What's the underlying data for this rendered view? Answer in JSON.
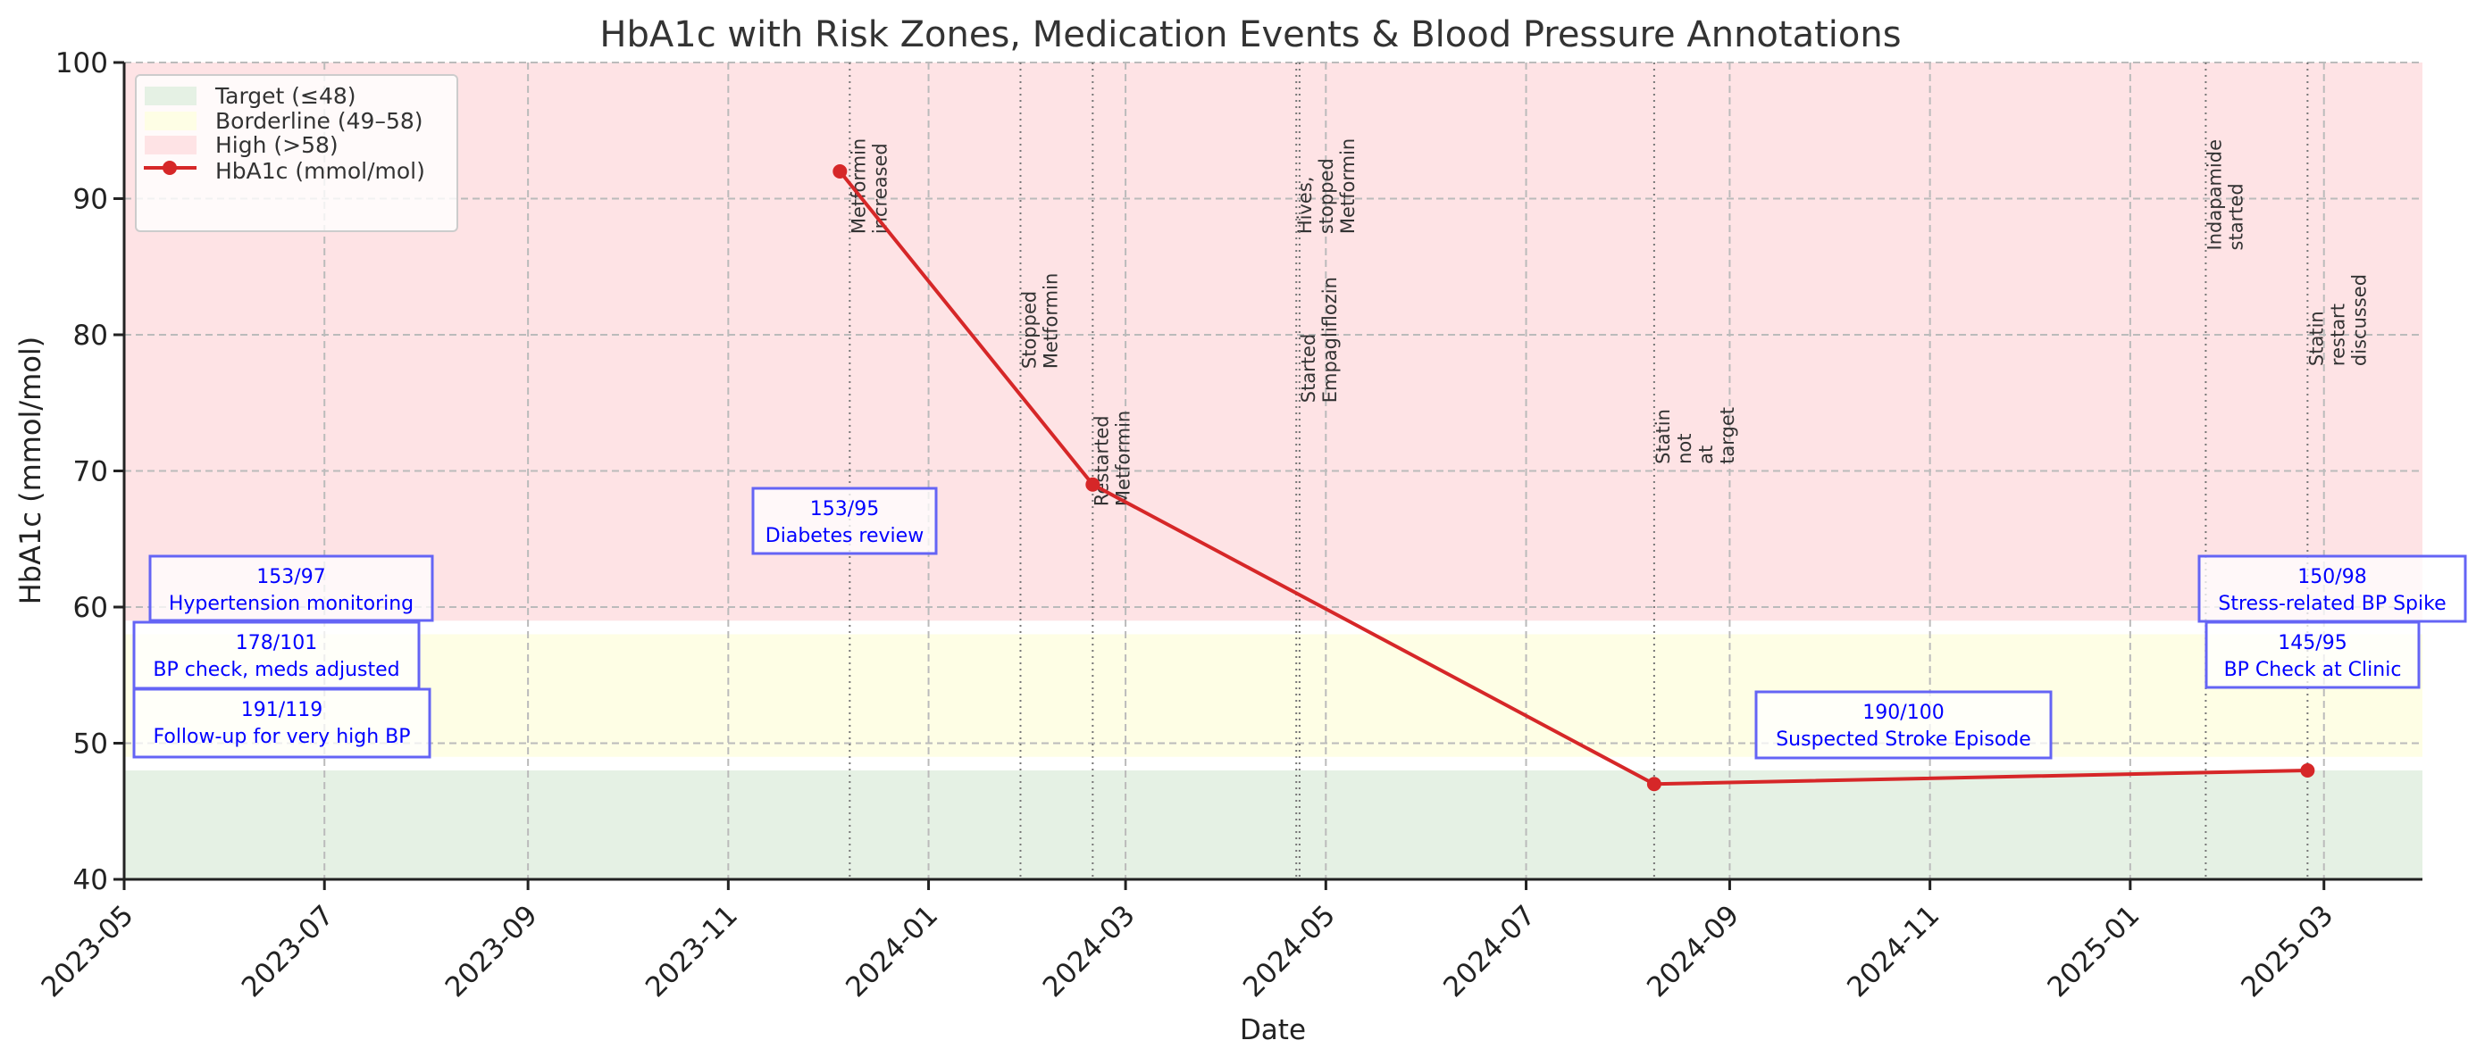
{
  "chart_data": {
    "type": "line",
    "title": "HbA1c with Risk Zones, Medication Events & Blood Pressure Annotations",
    "xlabel": "Date",
    "ylabel": "HbA1c (mmol/mol)",
    "xlim": [
      "2023-05-01",
      "2025-03-31"
    ],
    "ylim": [
      40,
      100
    ],
    "grid": true,
    "x_ticks": [
      "2023-05",
      "2023-07",
      "2023-09",
      "2023-11",
      "2024-01",
      "2024-03",
      "2024-05",
      "2024-07",
      "2024-09",
      "2024-11",
      "2025-01",
      "2025-03"
    ],
    "y_ticks": [
      40,
      50,
      60,
      70,
      80,
      90,
      100
    ],
    "legend_placement": "top-left",
    "zones": [
      {
        "name": "Target (≤48)",
        "from": 40,
        "to": 48,
        "color": "#e5f1e4"
      },
      {
        "name": "Borderline (49–58)",
        "from": 49,
        "to": 58,
        "color": "#fefee5"
      },
      {
        "name": "High (>58)",
        "from": 59,
        "to": 100,
        "color": "#fee3e5"
      }
    ],
    "series": [
      {
        "name": "HbA1c (mmol/mol)",
        "color": "#d62728",
        "x": [
          "2023-12-05",
          "2024-02-20",
          "2024-08-09",
          "2025-02-24"
        ],
        "y": [
          92,
          69,
          47,
          48
        ]
      }
    ],
    "events": [
      {
        "date": "2023-12-08",
        "lines": [
          "Metformin",
          "increased"
        ],
        "label_y": 87.4
      },
      {
        "date": "2024-01-29",
        "lines": [
          "Stopped",
          "Metformin"
        ],
        "label_y": 77.5
      },
      {
        "date": "2024-02-20",
        "lines": [
          "Restarted",
          "Metformin"
        ],
        "label_y": 67.4
      },
      {
        "date": "2024-04-22",
        "lines": [
          "Hives,",
          "stopped",
          "Metformin"
        ],
        "label_y": 87.4
      },
      {
        "date": "2024-04-23",
        "lines": [
          "Started",
          "Empagliflozin"
        ],
        "label_y": 75.0
      },
      {
        "date": "2024-08-09",
        "lines": [
          "Statin",
          "not",
          "at",
          "target"
        ],
        "label_y": 70.5
      },
      {
        "date": "2025-01-24",
        "lines": [
          "Indapamide",
          "started"
        ],
        "label_y": 86.2
      },
      {
        "date": "2025-02-24",
        "lines": [
          "Statin",
          "restart",
          "discussed"
        ],
        "label_y": 77.7
      }
    ],
    "bp_annotations": [
      {
        "reading": "153/95",
        "note": "Diabetes review"
      },
      {
        "reading": "153/97",
        "note": "Hypertension monitoring"
      },
      {
        "reading": "178/101",
        "note": "BP check, meds adjusted"
      },
      {
        "reading": "191/119",
        "note": "Follow-up for very high BP"
      },
      {
        "reading": "190/100",
        "note": "Suspected Stroke Episode"
      },
      {
        "reading": "150/98",
        "note": "Stress-related BP Spike"
      },
      {
        "reading": "145/95",
        "note": "BP Check at Clinic"
      }
    ],
    "annotation_color": "#0000ff"
  }
}
